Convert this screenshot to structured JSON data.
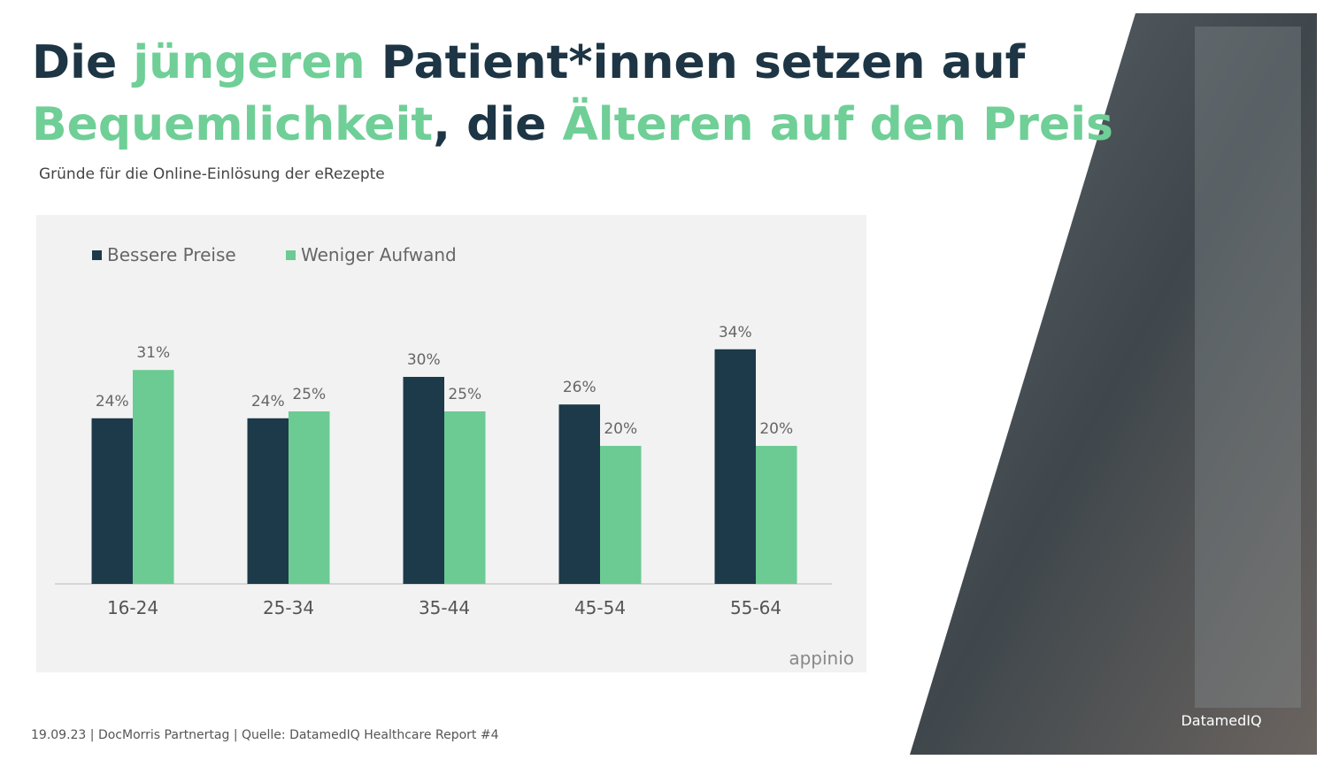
{
  "header": {
    "title_lines": [
      [
        {
          "text": "Die ",
          "color": "#1d3544"
        },
        {
          "text": "jüngeren",
          "color": "#6fcf97"
        },
        {
          "text": " Patient*innen setzen auf",
          "color": "#1d3544"
        }
      ],
      [
        {
          "text": "Bequemlichkeit",
          "color": "#6fcf97"
        },
        {
          "text": ", die ",
          "color": "#1d3544"
        },
        {
          "text": "Älteren auf den Preis",
          "color": "#6fcf97"
        }
      ]
    ],
    "subtitle": "Gründe für die Online-Einlösung der eRezepte"
  },
  "chart_data": {
    "type": "bar",
    "categories": [
      "16-24",
      "25-34",
      "35-44",
      "45-54",
      "55-64"
    ],
    "series": [
      {
        "name": "Bessere Preise",
        "color": "#1c3a4a",
        "values": [
          24,
          24,
          30,
          26,
          34
        ],
        "value_labels": [
          "24%",
          "24%",
          "30%",
          "26%",
          "34%"
        ]
      },
      {
        "name": "Weniger Aufwand",
        "color": "#6ccb93",
        "values": [
          31,
          25,
          25,
          20,
          20
        ],
        "value_labels": [
          "31%",
          "25%",
          "25%",
          "20%",
          "20%"
        ]
      }
    ],
    "watermark": "appinio"
  },
  "footer": "19.09.23 | DocMorris Partnertag | Quelle: DatamedIQ Healthcare Report #4",
  "photo_logo": "DatamedIQ"
}
